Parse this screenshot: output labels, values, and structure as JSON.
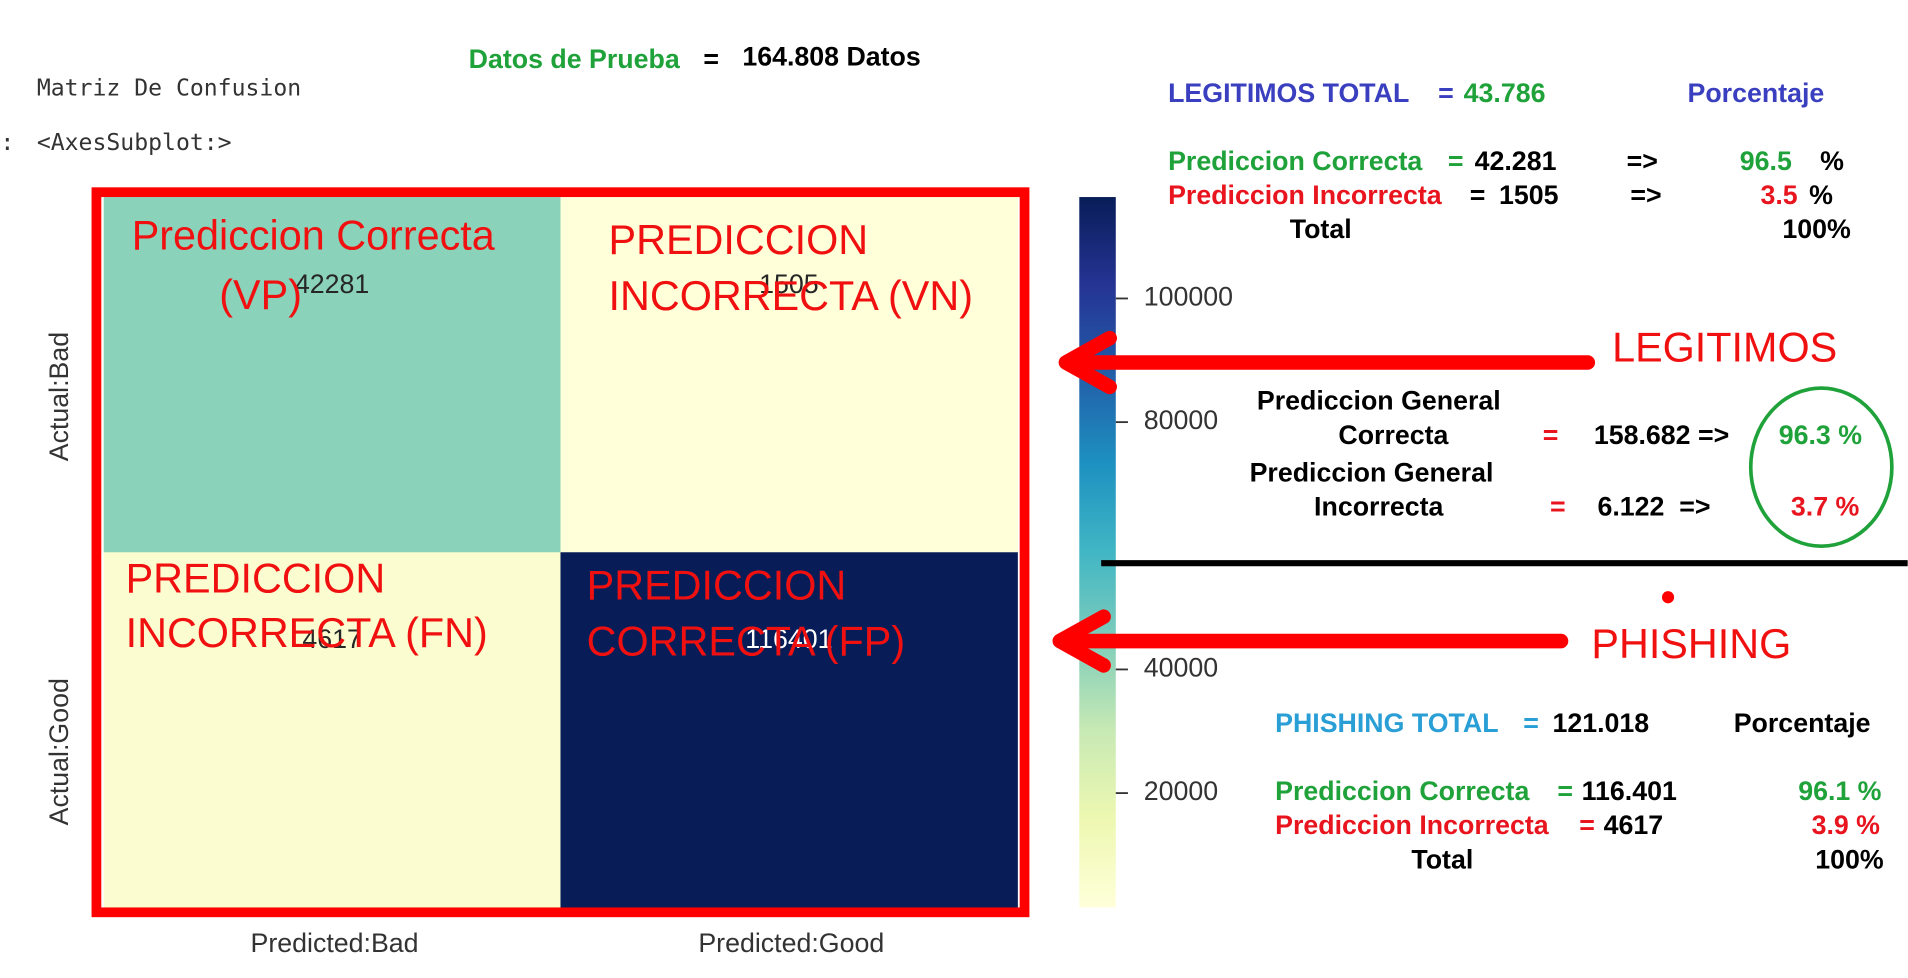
{
  "notebook": {
    "title": "Matriz De Confusion",
    "prompt": ":",
    "output": "<AxesSubplot:>"
  },
  "header": {
    "label": "Datos de Prueba",
    "eq": "=",
    "value": "164.808 Datos"
  },
  "chart_data": {
    "type": "heatmap",
    "x_categories": [
      "Predicted:Bad",
      "Predicted:Good"
    ],
    "y_categories": [
      "Actual:Bad",
      "Actual:Good"
    ],
    "values": [
      [
        42281,
        1505
      ],
      [
        4617,
        116401
      ]
    ],
    "colormap": [
      "#ffffd9",
      "#edf8b1",
      "#c7e9b4",
      "#7fcdbb",
      "#41b6c4",
      "#1d91c0",
      "#225ea8",
      "#253494",
      "#081d58"
    ],
    "clim": [
      1505,
      116401
    ],
    "cticks": [
      20000,
      40000,
      80000,
      100000
    ],
    "cell_annotations": [
      [
        [
          "Prediccion Correcta",
          "(VP)"
        ],
        [
          "PREDICCION",
          "INCORRECTA (VN)"
        ]
      ],
      [
        [
          "PREDICCION",
          "INCORRECTA (FN)"
        ],
        [
          "PREDICCION",
          "CORRECTA (FP)"
        ]
      ]
    ]
  },
  "arrows": [
    "LEGITIMOS",
    "PHISHING"
  ],
  "legitimos": {
    "total_label": "LEGITIMOS TOTAL",
    "eq": "=",
    "total": "43.786",
    "pct_header": "Porcentaje",
    "rows": [
      {
        "label": "Prediccion Correcta",
        "eq": "=",
        "value": "42.281",
        "arrow": "=>",
        "pct": "96.5",
        "unit": "%"
      },
      {
        "label": "Prediccion Incorrecta",
        "eq": "=",
        "value": "1505",
        "arrow": "=>",
        "pct": "3.5",
        "unit": "%"
      }
    ],
    "total_row": {
      "label": "Total",
      "pct": "100%"
    }
  },
  "general": [
    {
      "line1": "Prediccion General",
      "line2": "Correcta",
      "eq": "=",
      "value": "158.682 =>",
      "pct": "96.3 %"
    },
    {
      "line1": "Prediccion General",
      "line2": "Incorrecta",
      "eq": "=",
      "value": "6.122  =>",
      "pct": "3.7 %"
    }
  ],
  "phishing": {
    "total_label": "PHISHING TOTAL",
    "eq": "=",
    "total": "121.018",
    "pct_header": "Porcentaje",
    "rows": [
      {
        "label": "Prediccion Correcta",
        "eq": "=",
        "value": "116.401",
        "pct": "96.1 %"
      },
      {
        "label": "Prediccion Incorrecta",
        "eq": "=",
        "value": "4617",
        "pct": "3.9 %"
      }
    ],
    "total_row": {
      "label": "Total",
      "pct": "100%"
    }
  }
}
